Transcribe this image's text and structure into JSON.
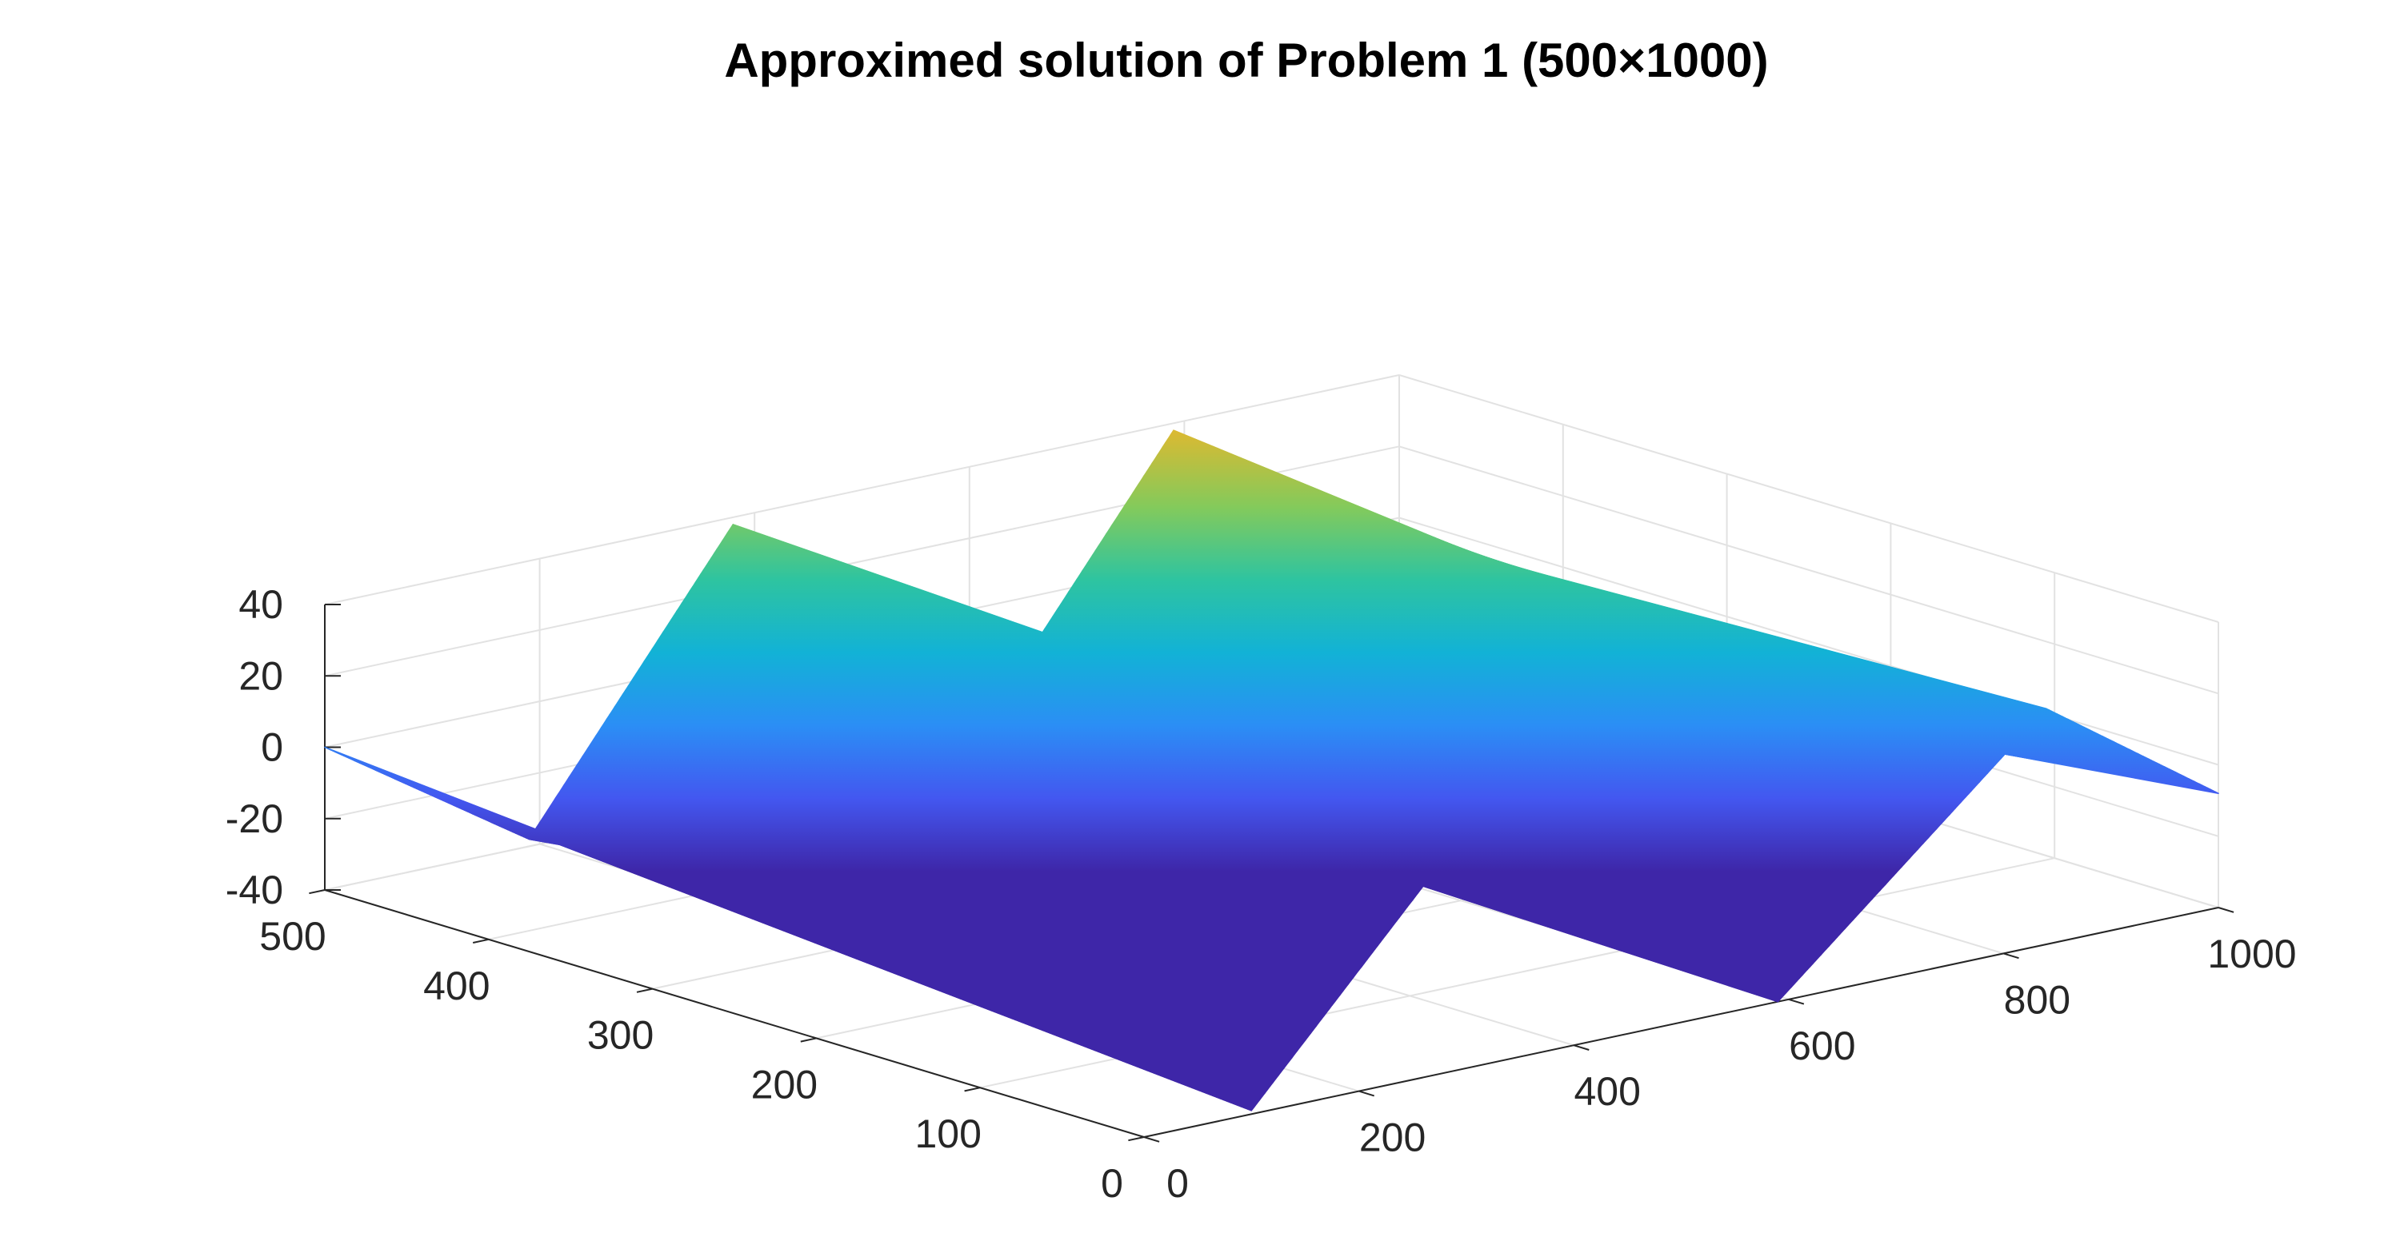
{
  "chart_data": {
    "type": "surface",
    "title": "Approximed solution of Problem 1 (500×1000)",
    "xlabel": "",
    "ylabel": "",
    "zlabel": "",
    "x_ticks": [
      "0",
      "200",
      "400",
      "600",
      "800",
      "1000"
    ],
    "y_ticks": [
      "0",
      "100",
      "200",
      "300",
      "400",
      "500"
    ],
    "z_ticks": [
      "-40",
      "-20",
      "0",
      "20",
      "40"
    ],
    "xlim": [
      0,
      1000
    ],
    "ylim": [
      0,
      500
    ],
    "zlim": [
      -40,
      40
    ],
    "grid": true,
    "box": false,
    "colormap": "parula",
    "colormap_stops": [
      "#3e26a8",
      "#4357f0",
      "#2b8ef5",
      "#12b2d6",
      "#2ec4a0",
      "#84ca5b",
      "#d8ba33",
      "#fbc33a",
      "#f9fb15"
    ],
    "surface": {
      "description_of_values": "z(x, y) along x at the back edge (y=500) and front edge (y=0)",
      "back_edge": {
        "y": 500,
        "x": [
          0,
          190,
          380,
          600,
          790,
          980,
          1000
        ],
        "z": [
          0,
          -38,
          38,
          -38,
          38,
          -38,
          -35
        ]
      },
      "front_edge": {
        "y": 0,
        "x": [
          0,
          100,
          340,
          590,
          840,
          1000
        ],
        "z": [
          -20,
          -39,
          40,
          -40,
          26,
          -8
        ]
      }
    }
  }
}
